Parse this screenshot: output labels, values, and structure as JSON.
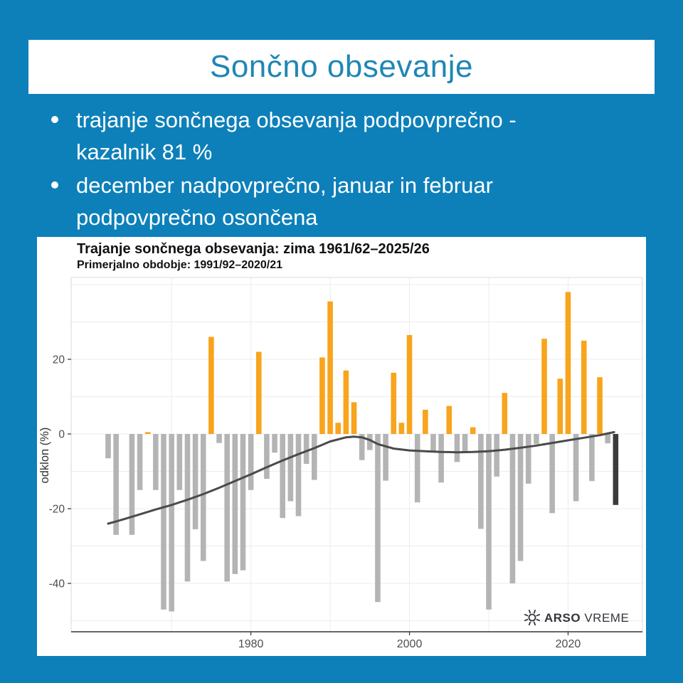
{
  "banner": {
    "title": "Sončno obsevanje"
  },
  "bullets": [
    {
      "text": "trajanje sončnega obsevanja podpovprečno - kazalnik 81 %",
      "lines": [
        "trajanje sončnega obsevanja podpovprečno -",
        "kazalnik 81 %"
      ]
    },
    {
      "text": "december nadpovprečno, januar in februar podpovprečno osončena",
      "lines": [
        "december nadpovprečno, januar in februar",
        "podpovprečno osončena"
      ]
    }
  ],
  "colors": {
    "page_background": "#0d80ba",
    "banner_background": "#ffffff",
    "banner_title": "#1f87b5",
    "bullet_text": "#ffffff",
    "card_background": "#ffffff",
    "bar_positive": "#f8a41c",
    "bar_negative": "#b4b4b4",
    "bar_current": "#3b3b3b",
    "trend_line": "#4a4a4a",
    "gridline": "#ececec",
    "axis_line": "#333333",
    "tick_text": "#4d4d4d",
    "logo_text": "#34343c"
  },
  "chart_data": {
    "type": "bar",
    "title": "Trajanje sončnega obsevanja: zima 1961/62–2025/26",
    "subtitle": "Primerjalno obdobje: 1991/92–2020/21",
    "ylabel": "odklon (%)",
    "xlabel": "",
    "y_ticks": [
      20,
      0,
      -20,
      -40
    ],
    "x_ticks": [
      1980,
      2000,
      2020
    ],
    "ylim": [
      -52.5,
      42
    ],
    "xlim_years": [
      1957.3,
      2029.4
    ],
    "grid": {
      "horizontal_step": 10,
      "vertical_years": [
        1970,
        1980,
        1990,
        2000,
        2010,
        2020
      ]
    },
    "legend_position": "none",
    "missing_years": [
      1964
    ],
    "current_year": 2026,
    "bars": [
      [
        1962,
        -6.5
      ],
      [
        1963,
        -27
      ],
      [
        1965,
        -27
      ],
      [
        1966,
        -15
      ],
      [
        1967,
        0.5
      ],
      [
        1968,
        -15
      ],
      [
        1969,
        -47
      ],
      [
        1970,
        -47.5
      ],
      [
        1971,
        -15
      ],
      [
        1972,
        -39.5
      ],
      [
        1973,
        -25.5
      ],
      [
        1974,
        -34
      ],
      [
        1975,
        26
      ],
      [
        1976,
        -2.4
      ],
      [
        1977,
        -39.5
      ],
      [
        1978,
        -37.5
      ],
      [
        1979,
        -36.5
      ],
      [
        1980,
        -15
      ],
      [
        1981,
        22
      ],
      [
        1982,
        -12
      ],
      [
        1983,
        -5
      ],
      [
        1984,
        -22.5
      ],
      [
        1985,
        -18
      ],
      [
        1986,
        -22
      ],
      [
        1987,
        -8
      ],
      [
        1988,
        -12.3
      ],
      [
        1989,
        20.5
      ],
      [
        1990,
        35.5
      ],
      [
        1991,
        3
      ],
      [
        1992,
        17
      ],
      [
        1993,
        8.5
      ],
      [
        1994,
        -7
      ],
      [
        1995,
        -4.3
      ],
      [
        1996,
        -45
      ],
      [
        1997,
        -12.5
      ],
      [
        1998,
        16.4
      ],
      [
        1999,
        3
      ],
      [
        2000,
        26.5
      ],
      [
        2001,
        -18.3
      ],
      [
        2002,
        6.5
      ],
      [
        2003,
        -4.7
      ],
      [
        2004,
        -13
      ],
      [
        2005,
        7.5
      ],
      [
        2006,
        -7.5
      ],
      [
        2007,
        -5
      ],
      [
        2008,
        1.8
      ],
      [
        2009,
        -25.4
      ],
      [
        2010,
        -47
      ],
      [
        2011,
        -11.4
      ],
      [
        2012,
        11
      ],
      [
        2013,
        -40
      ],
      [
        2014,
        -34
      ],
      [
        2015,
        -13.3
      ],
      [
        2016,
        -2.7
      ],
      [
        2017,
        25.5
      ],
      [
        2018,
        -21.2
      ],
      [
        2019,
        14.8
      ],
      [
        2020,
        38
      ],
      [
        2021,
        -18
      ],
      [
        2022,
        25
      ],
      [
        2023,
        -12.6
      ],
      [
        2024,
        15.2
      ],
      [
        2025,
        -2.5
      ],
      [
        2026,
        -19
      ]
    ],
    "trend": [
      [
        1962,
        -24
      ],
      [
        1963,
        -23.4
      ],
      [
        1964,
        -22.8
      ],
      [
        1966,
        -21.5
      ],
      [
        1968,
        -20.2
      ],
      [
        1970,
        -19
      ],
      [
        1972,
        -17.6
      ],
      [
        1974,
        -16.1
      ],
      [
        1976,
        -14.4
      ],
      [
        1978,
        -12.6
      ],
      [
        1980,
        -10.8
      ],
      [
        1982,
        -8.9
      ],
      [
        1984,
        -7.1
      ],
      [
        1986,
        -5.4
      ],
      [
        1988,
        -3.8
      ],
      [
        1990,
        -2
      ],
      [
        1992,
        -0.9
      ],
      [
        1993,
        -0.7
      ],
      [
        1994,
        -0.9
      ],
      [
        1995,
        -1.6
      ],
      [
        1996,
        -2.7
      ],
      [
        1998,
        -3.9
      ],
      [
        2000,
        -4.4
      ],
      [
        2002,
        -4.6
      ],
      [
        2004,
        -4.8
      ],
      [
        2006,
        -4.9
      ],
      [
        2008,
        -4.8
      ],
      [
        2010,
        -4.6
      ],
      [
        2012,
        -4.2
      ],
      [
        2014,
        -3.7
      ],
      [
        2016,
        -3.1
      ],
      [
        2018,
        -2.4
      ],
      [
        2020,
        -1.7
      ],
      [
        2022,
        -1
      ],
      [
        2024,
        -0.3
      ],
      [
        2025.8,
        0.5
      ]
    ],
    "logo": {
      "text_bold": "ARSO",
      "text_regular": "VREME"
    }
  }
}
